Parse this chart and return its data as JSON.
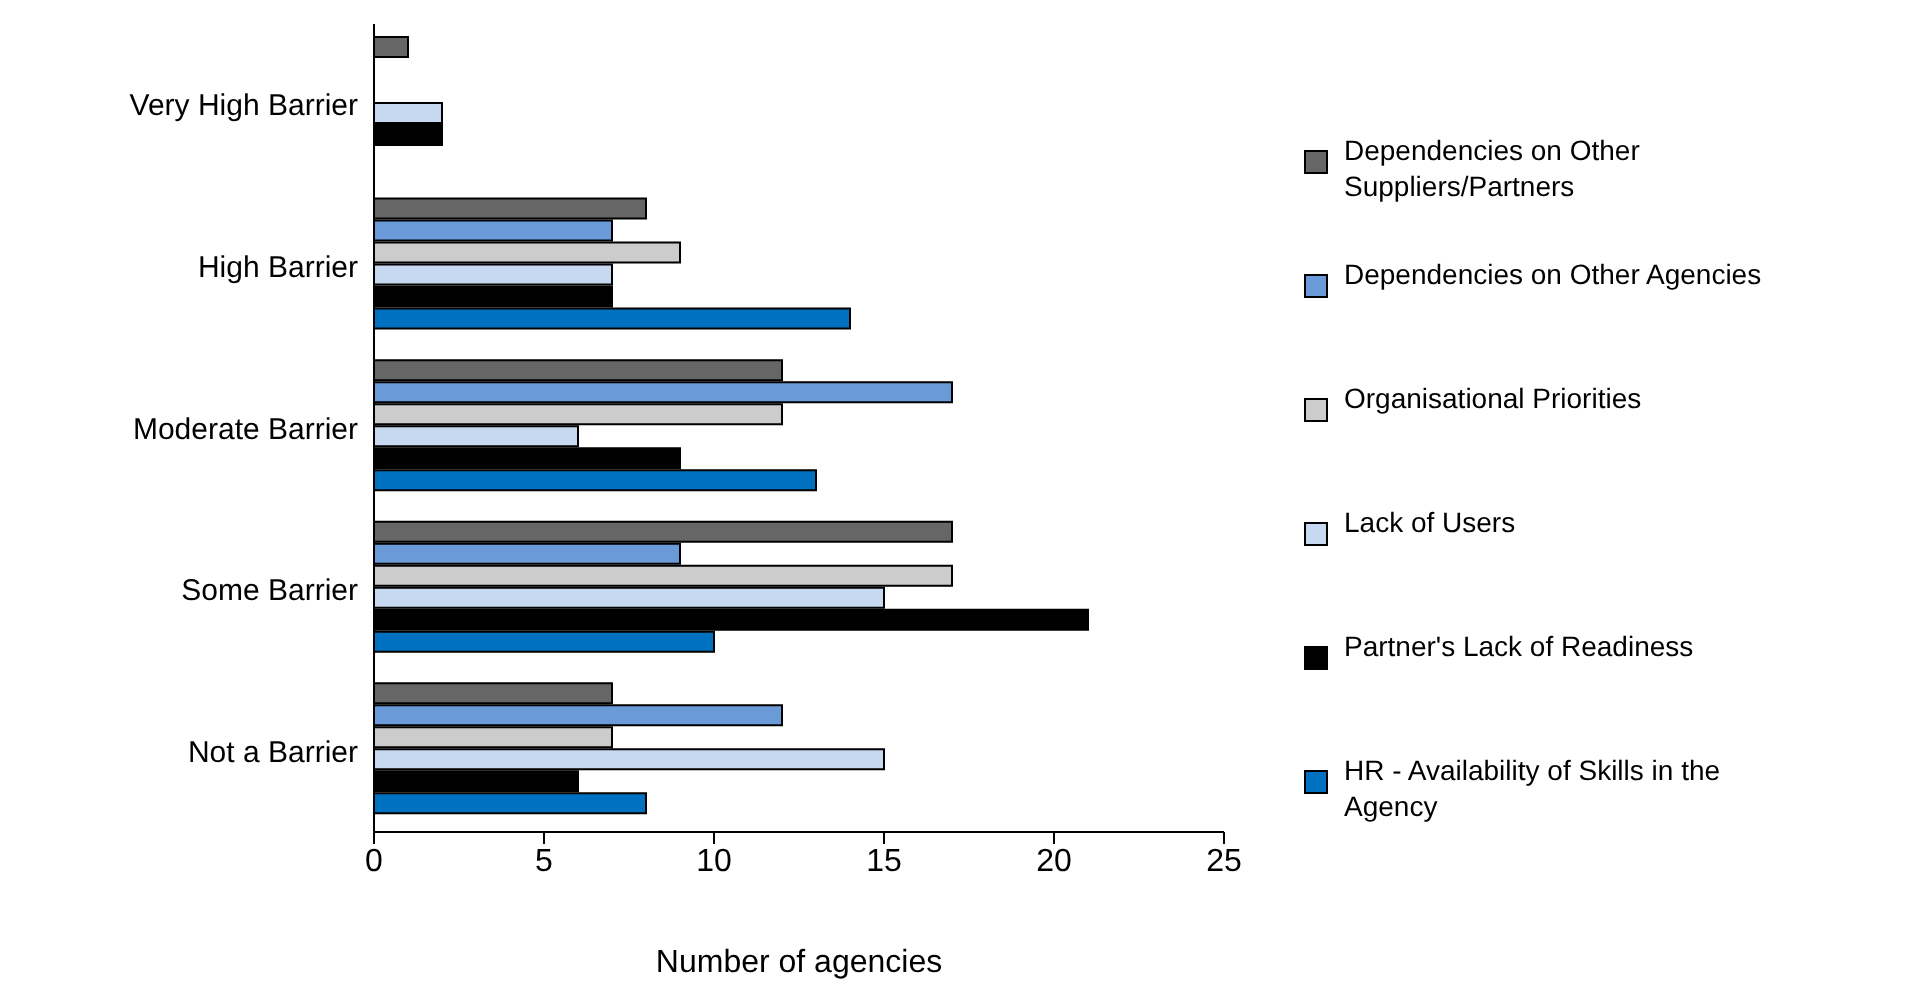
{
  "chart_data": {
    "type": "bar",
    "orientation": "horizontal",
    "xlabel": "Number of agencies",
    "categories": [
      "Very High Barrier",
      "High Barrier",
      "Moderate Barrier",
      "Some Barrier",
      "Not a Barrier"
    ],
    "series": [
      {
        "name": "Dependencies on Other Suppliers/Partners",
        "color": "#666666",
        "values": [
          1,
          8,
          12,
          17,
          7
        ]
      },
      {
        "name": "Dependencies on Other Agencies",
        "color": "#6a9bd8",
        "values": [
          0,
          7,
          17,
          9,
          12
        ]
      },
      {
        "name": "Organisational Priorities",
        "color": "#cccccc",
        "values": [
          0,
          9,
          12,
          17,
          7
        ]
      },
      {
        "name": "Lack of Users",
        "color": "#c6d9f1",
        "values": [
          2,
          7,
          6,
          15,
          15
        ]
      },
      {
        "name": "Partner's Lack of Readiness",
        "color": "#000000",
        "values": [
          2,
          7,
          9,
          21,
          6
        ]
      },
      {
        "name": "HR - Availability of Skills in the Agency",
        "color": "#0070c0",
        "values": [
          0,
          14,
          13,
          10,
          8
        ]
      }
    ],
    "xlim": [
      0,
      25
    ],
    "xticks": [
      0,
      5,
      10,
      15,
      20,
      25
    ],
    "grid": false,
    "legend": "right"
  }
}
